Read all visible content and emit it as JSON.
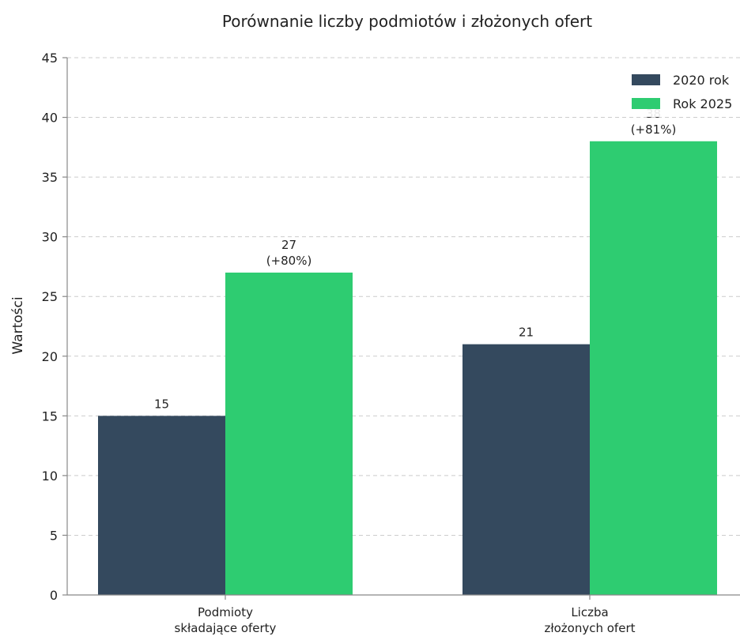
{
  "chart_data": {
    "type": "bar",
    "title": "Porównanie liczby podmiotów i złożonych ofert",
    "ylabel": "Wartości",
    "xlabel": "",
    "ylim": [
      0,
      45
    ],
    "yticks": [
      "0",
      "5",
      "10",
      "15",
      "20",
      "25",
      "30",
      "35",
      "40",
      "45"
    ],
    "grid": true,
    "legend_position": "top-right",
    "categories": [
      [
        "Podmioty",
        "składające oferty"
      ],
      [
        "Liczba",
        "złożonych ofert"
      ]
    ],
    "series": [
      {
        "name": "2020 rok",
        "color": "#34495e",
        "values": [
          15,
          21
        ],
        "labels": [
          [
            "15"
          ],
          [
            "21"
          ]
        ]
      },
      {
        "name": "Rok 2025",
        "color": "#2ecc71",
        "values": [
          27,
          38
        ],
        "labels": [
          [
            "27",
            "(+80%)"
          ],
          [
            "38",
            "(+81%)"
          ]
        ]
      }
    ]
  }
}
